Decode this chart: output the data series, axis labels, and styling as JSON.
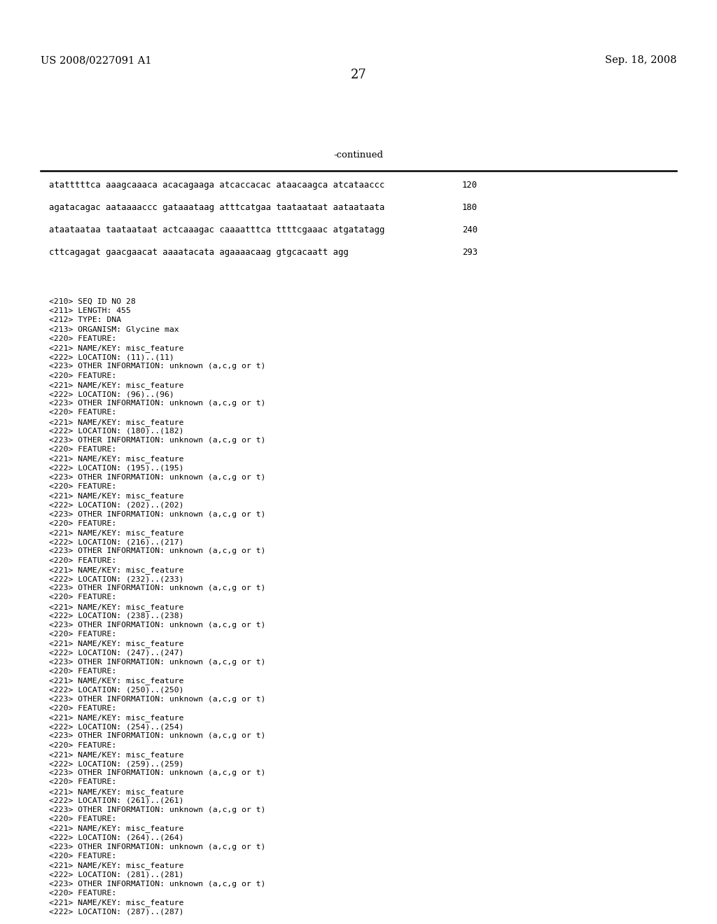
{
  "header_left": "US 2008/0227091 A1",
  "header_right": "Sep. 18, 2008",
  "page_number": "27",
  "continued_label": "-continued",
  "background_color": "#ffffff",
  "text_color": "#000000",
  "sequence_lines": [
    {
      "seq": "atatttttca aaagcaaaca acacagaaga atcaccacac ataacaagca atcataaccc",
      "num": "120"
    },
    {
      "seq": "agatacagac aataaaaccc gataaataag atttcatgaa taataataat aataataata",
      "num": "180"
    },
    {
      "seq": "ataataataa taataataat actcaaagac caaaatttca ttttcgaaac atgatatagg",
      "num": "240"
    },
    {
      "seq": "cttcagagat gaacgaacat aaaatacata agaaaacaag gtgcacaatt agg",
      "num": "293"
    }
  ],
  "feature_lines": [
    "<210> SEQ ID NO 28",
    "<211> LENGTH: 455",
    "<212> TYPE: DNA",
    "<213> ORGANISM: Glycine max",
    "<220> FEATURE:",
    "<221> NAME/KEY: misc_feature",
    "<222> LOCATION: (11)..(11)",
    "<223> OTHER INFORMATION: unknown (a,c,g or t)",
    "<220> FEATURE:",
    "<221> NAME/KEY: misc_feature",
    "<222> LOCATION: (96)..(96)",
    "<223> OTHER INFORMATION: unknown (a,c,g or t)",
    "<220> FEATURE:",
    "<221> NAME/KEY: misc_feature",
    "<222> LOCATION: (180)..(182)",
    "<223> OTHER INFORMATION: unknown (a,c,g or t)",
    "<220> FEATURE:",
    "<221> NAME/KEY: misc_feature",
    "<222> LOCATION: (195)..(195)",
    "<223> OTHER INFORMATION: unknown (a,c,g or t)",
    "<220> FEATURE:",
    "<221> NAME/KEY: misc_feature",
    "<222> LOCATION: (202)..(202)",
    "<223> OTHER INFORMATION: unknown (a,c,g or t)",
    "<220> FEATURE:",
    "<221> NAME/KEY: misc_feature",
    "<222> LOCATION: (216)..(217)",
    "<223> OTHER INFORMATION: unknown (a,c,g or t)",
    "<220> FEATURE:",
    "<221> NAME/KEY: misc_feature",
    "<222> LOCATION: (232)..(233)",
    "<223> OTHER INFORMATION: unknown (a,c,g or t)",
    "<220> FEATURE:",
    "<221> NAME/KEY: misc_feature",
    "<222> LOCATION: (238)..(238)",
    "<223> OTHER INFORMATION: unknown (a,c,g or t)",
    "<220> FEATURE:",
    "<221> NAME/KEY: misc_feature",
    "<222> LOCATION: (247)..(247)",
    "<223> OTHER INFORMATION: unknown (a,c,g or t)",
    "<220> FEATURE:",
    "<221> NAME/KEY: misc_feature",
    "<222> LOCATION: (250)..(250)",
    "<223> OTHER INFORMATION: unknown (a,c,g or t)",
    "<220> FEATURE:",
    "<221> NAME/KEY: misc_feature",
    "<222> LOCATION: (254)..(254)",
    "<223> OTHER INFORMATION: unknown (a,c,g or t)",
    "<220> FEATURE:",
    "<221> NAME/KEY: misc_feature",
    "<222> LOCATION: (259)..(259)",
    "<223> OTHER INFORMATION: unknown (a,c,g or t)",
    "<220> FEATURE:",
    "<221> NAME/KEY: misc_feature",
    "<222> LOCATION: (261)..(261)",
    "<223> OTHER INFORMATION: unknown (a,c,g or t)",
    "<220> FEATURE:",
    "<221> NAME/KEY: misc_feature",
    "<222> LOCATION: (264)..(264)",
    "<223> OTHER INFORMATION: unknown (a,c,g or t)",
    "<220> FEATURE:",
    "<221> NAME/KEY: misc_feature",
    "<222> LOCATION: (281)..(281)",
    "<223> OTHER INFORMATION: unknown (a,c,g or t)",
    "<220> FEATURE:",
    "<221> NAME/KEY: misc_feature",
    "<222> LOCATION: (287)..(287)"
  ]
}
